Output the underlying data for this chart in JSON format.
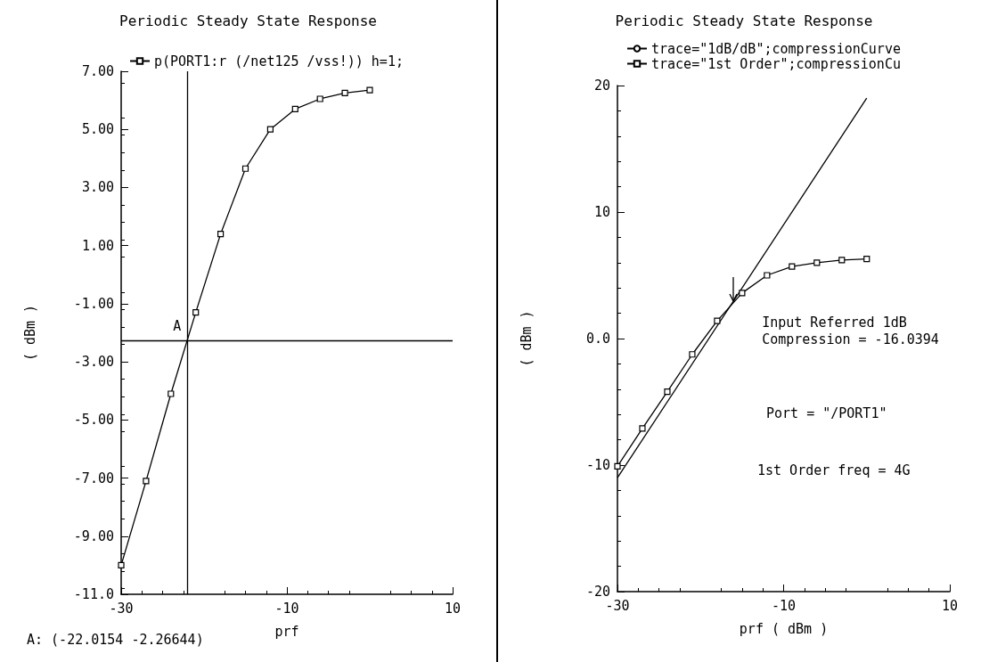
{
  "chart_data": [
    {
      "type": "line",
      "title": "Periodic Steady State Response",
      "xlabel": "prf",
      "ylabel": "( dBm )",
      "xlim": [
        -30,
        10
      ],
      "xticks": [
        -30,
        -10,
        10
      ],
      "ylim": [
        -11,
        7
      ],
      "yticks": [
        {
          "value": -11,
          "label": "-11.0"
        },
        {
          "value": -9,
          "label": "-9.00"
        },
        {
          "value": -7,
          "label": "-7.00"
        },
        {
          "value": -5,
          "label": "-5.00"
        },
        {
          "value": -3,
          "label": "-3.00"
        },
        {
          "value": -1,
          "label": "-1.00"
        },
        {
          "value": 1,
          "label": "1.00"
        },
        {
          "value": 3,
          "label": "3.00"
        },
        {
          "value": 5,
          "label": "5.00"
        },
        {
          "value": 7,
          "label": "7.00"
        }
      ],
      "grid": false,
      "legend": "top",
      "marker": "square",
      "series": [
        {
          "name": "p(PORT1:r (/net125 /vss!)) h=1;",
          "color": "#000000",
          "x": [
            -30,
            -27,
            -24,
            -21,
            -18,
            -15,
            -12,
            -9,
            -6,
            -3,
            0
          ],
          "values": [
            -10.0,
            -7.1,
            -4.1,
            -1.3,
            1.4,
            3.65,
            5.0,
            5.7,
            6.05,
            6.25,
            6.35
          ]
        }
      ],
      "ref_lines": [
        {
          "axis": "x",
          "value": -22.0154,
          "color": "#000000"
        },
        {
          "axis": "y",
          "value": -2.26644,
          "color": "#000000"
        }
      ],
      "annotations": [
        {
          "text": "A",
          "x": -22.0154,
          "y": -2.26644
        },
        "A: (-22.0154 -2.26644)"
      ]
    },
    {
      "type": "line",
      "title": "Periodic Steady State Response",
      "xlabel": "prf ( dBm )",
      "ylabel": "( dBm )",
      "xlim": [
        -30,
        10
      ],
      "xticks": [
        -30,
        -10,
        10
      ],
      "ylim": [
        -20,
        20
      ],
      "yticks": [
        -20,
        -10,
        {
          "value": 0,
          "label": "0.0"
        },
        10,
        20
      ],
      "grid": false,
      "legend": "top",
      "series": [
        {
          "name": "trace=\"1dB/dB\";compressionCurve",
          "color": "#000000",
          "marker": "none",
          "x": [
            -30,
            0
          ],
          "values": [
            -11,
            19
          ]
        },
        {
          "name": "trace=\"1st Order\";compressionCu",
          "color": "#000000",
          "marker": "square",
          "x": [
            -30,
            -27,
            -24,
            -21,
            -18,
            -15,
            -12,
            -9,
            -6,
            -3,
            0
          ],
          "values": [
            -10.1,
            -7.1,
            -4.2,
            -1.25,
            1.4,
            3.6,
            5.0,
            5.7,
            6.0,
            6.2,
            6.3
          ]
        }
      ],
      "annotations": [
        {
          "text": "Input Referred 1dB Compression = -16.0394",
          "x": -16.0394,
          "y": 2.9
        },
        "Port = \"/PORT1\"",
        "1st Order freq = 4G"
      ]
    }
  ]
}
